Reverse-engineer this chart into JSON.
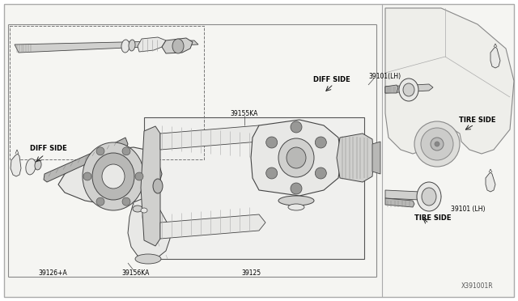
{
  "bg": "#ffffff",
  "box_bg": "#f5f5f2",
  "lc": "#444444",
  "lc2": "#222222",
  "fill_light": "#e8e8e6",
  "fill_mid": "#d0d0ce",
  "fill_dark": "#b8b8b6",
  "fill_darker": "#989896",
  "labels": {
    "diff_side_left": "DIFF SIDE",
    "diff_side_right": "DIFF SIDE",
    "tire_side_right1": "TIRE SIDE",
    "tire_side_right2": "TIRE SIDE",
    "p39101_lh_1": "39101(LH)",
    "p39101_lh_2": "39101 (LH)",
    "p39155ka": "39155KA",
    "p39156ka": "39156KA",
    "p39126a": "39126+A",
    "p39125": "39125",
    "ref": "X391001R"
  }
}
